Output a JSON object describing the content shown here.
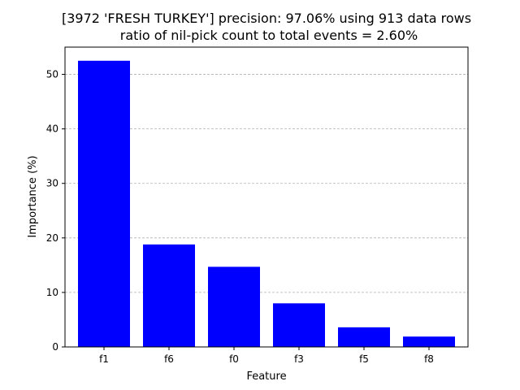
{
  "chart_data": {
    "type": "bar",
    "title": "[3972 'FRESH TURKEY'] precision: 97.06% using 913 data rows",
    "subtitle": "ratio of nil-pick count to total events = 2.60%",
    "xlabel": "Feature",
    "ylabel": "Importance (%)",
    "categories": [
      "f1",
      "f6",
      "f0",
      "f3",
      "f5",
      "f8"
    ],
    "values": [
      52.5,
      18.8,
      14.7,
      8.0,
      3.6,
      1.9
    ],
    "ylim": [
      0,
      55
    ],
    "yticks": [
      0,
      10,
      20,
      30,
      40,
      50
    ],
    "bar_color": "#0000ff",
    "grid": "y-dashed",
    "legend": "none"
  }
}
